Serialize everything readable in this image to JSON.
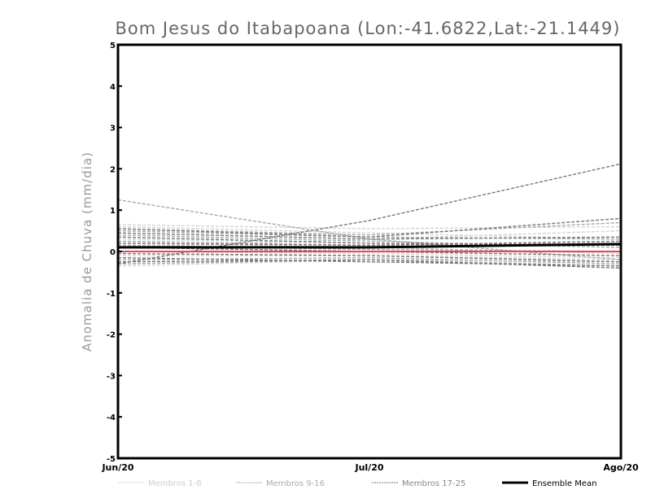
{
  "chart_data": {
    "type": "line",
    "title": "Bom Jesus do Itabapoana (Lon:-41.6822,Lat:-21.1449)",
    "xlabel": "",
    "ylabel": "Anomalia de Chuva (mm/dia)",
    "categories": [
      "Jun/20",
      "Jul/20",
      "Ago/20"
    ],
    "ylim": [
      -5,
      5
    ],
    "yticks": [
      "-5",
      "-4",
      "-3",
      "-2",
      "-1",
      "0",
      "1",
      "2",
      "3",
      "4",
      "5"
    ],
    "grid": false,
    "legend_position": "bottom",
    "series_groups": [
      {
        "name": "Membros 1-8",
        "color": "#d4d4d4",
        "members": [
          [
            0.65,
            0.55,
            0.6
          ],
          [
            0.6,
            0.45,
            0.3
          ],
          [
            0.3,
            0.2,
            0.1
          ],
          [
            0.2,
            0.1,
            -0.05
          ],
          [
            -0.1,
            -0.1,
            -0.2
          ],
          [
            -0.35,
            -0.2,
            -0.25
          ],
          [
            0.1,
            0.3,
            0.5
          ],
          [
            0.0,
            -0.05,
            -0.15
          ]
        ]
      },
      {
        "name": "Membros 9-16",
        "color": "#a8a8a8",
        "members": [
          [
            1.25,
            0.3,
            -0.2
          ],
          [
            0.55,
            0.4,
            0.7
          ],
          [
            0.25,
            0.15,
            0.2
          ],
          [
            -0.2,
            -0.15,
            -0.3
          ],
          [
            0.4,
            0.25,
            0.1
          ],
          [
            -0.3,
            -0.2,
            -0.35
          ],
          [
            0.15,
            0.05,
            0.0
          ],
          [
            0.5,
            0.35,
            0.3
          ]
        ]
      },
      {
        "name": "Membros 17-25",
        "color": "#777777",
        "members": [
          [
            -0.3,
            0.75,
            2.12
          ],
          [
            0.55,
            0.35,
            0.8
          ],
          [
            0.45,
            0.3,
            0.35
          ],
          [
            0.2,
            0.15,
            0.25
          ],
          [
            -0.15,
            -0.25,
            -0.35
          ],
          [
            -0.25,
            -0.2,
            -0.4
          ],
          [
            0.1,
            0.0,
            -0.1
          ],
          [
            0.35,
            0.2,
            0.15
          ],
          [
            -0.05,
            -0.1,
            -0.25
          ]
        ]
      }
    ],
    "zero_line_color": "#e84848",
    "ensemble_mean": {
      "name": "Ensemble Mean",
      "color": "#000000",
      "values": [
        0.1,
        0.1,
        0.18
      ]
    }
  }
}
